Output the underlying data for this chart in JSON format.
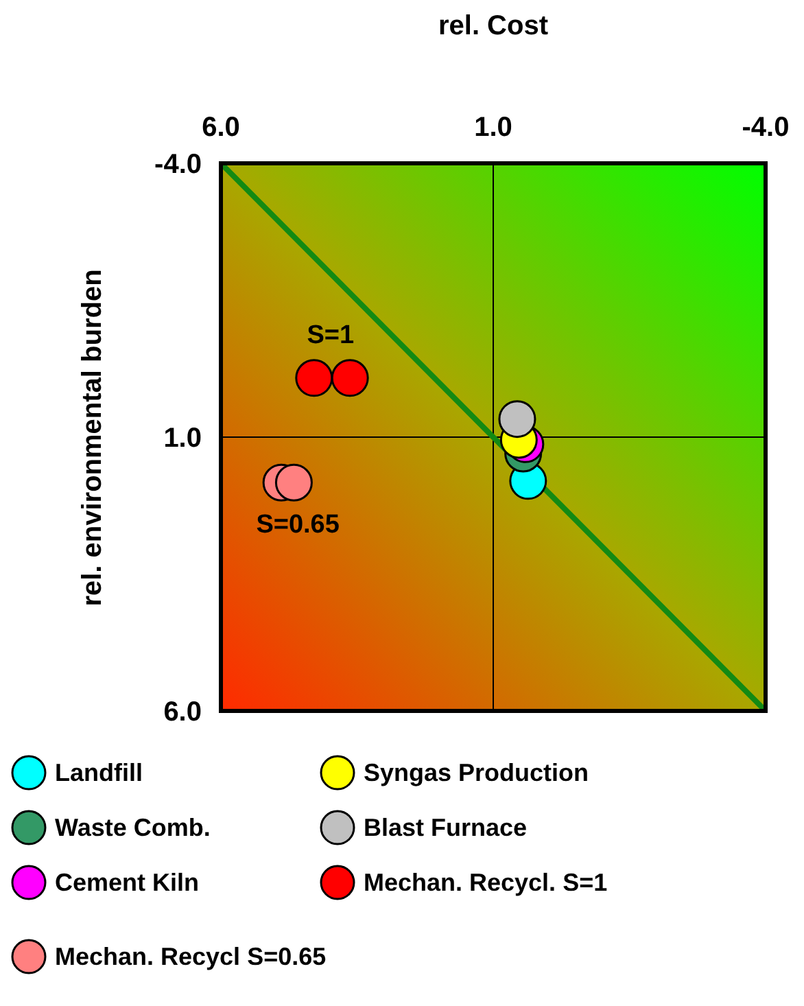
{
  "chart_data": {
    "type": "scatter",
    "xlabel": "rel. Cost",
    "ylabel": "rel. environmental burden",
    "xlim": [
      6.0,
      -4.0
    ],
    "xticks": [
      {
        "value": 6,
        "label": "6.0"
      },
      {
        "value": 1,
        "label": "1.0"
      },
      {
        "value": -4,
        "label": "-4.0"
      }
    ],
    "ylim": [
      6.0,
      -4.0
    ],
    "yticks": [
      {
        "value": 6,
        "label": "6.0"
      },
      {
        "value": 1,
        "label": "1.0"
      },
      {
        "value": -4,
        "label": "-4.0"
      }
    ],
    "grid": true,
    "legend": "bottom",
    "marker": "circle",
    "series": [
      {
        "name": "Landfill",
        "color": "#00ffff",
        "x": [
          0.36
        ],
        "values": [
          1.8
        ]
      },
      {
        "name": "Waste Comb.",
        "color": "#339966",
        "x": [
          0.45
        ],
        "values": [
          1.3
        ]
      },
      {
        "name": "Cement Kiln",
        "color": "#ff00ff",
        "x": [
          0.41
        ],
        "values": [
          1.13
        ]
      },
      {
        "name": "Syngas Production",
        "color": "#ffff00",
        "x": [
          0.53
        ],
        "values": [
          1.05
        ]
      },
      {
        "name": "Blast Furnace",
        "color": "#c0c0c0",
        "x": [
          0.56
        ],
        "values": [
          0.67
        ]
      },
      {
        "name": "Mechan. Recycl. S=1",
        "color": "#ff0000",
        "x": [
          4.29,
          3.63
        ],
        "values": [
          -0.08,
          -0.08
        ]
      },
      {
        "name": "Mechan. Recycl S=0.65",
        "color": "#ff8080",
        "x": [
          4.89,
          4.66
        ],
        "values": [
          1.83,
          1.83
        ]
      },
      {
        "type": "line",
        "color": "#138a13",
        "x": [
          6,
          -4
        ],
        "values": [
          -4,
          6
        ],
        "marker": "none"
      }
    ],
    "annotations": [
      {
        "text": "S=1",
        "x": 4.29,
        "y": -0.08
      },
      {
        "text": "S=0.65",
        "x": 4.89,
        "y": 1.83
      }
    ]
  }
}
